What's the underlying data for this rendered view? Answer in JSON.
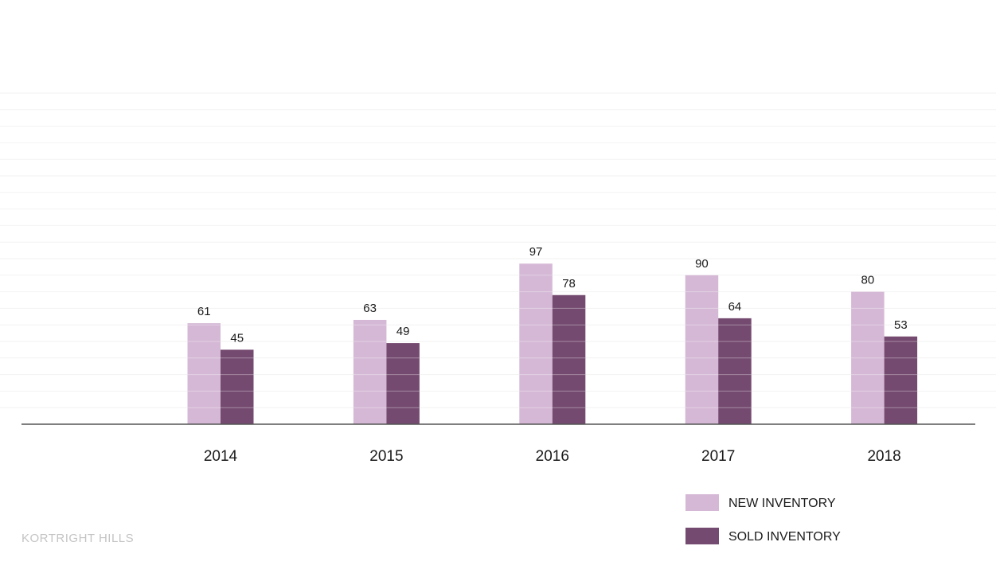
{
  "chart_data": {
    "type": "bar",
    "categories": [
      "2014",
      "2015",
      "2016",
      "2017",
      "2018"
    ],
    "series": [
      {
        "name": "NEW INVENTORY",
        "values": [
          61,
          63,
          97,
          90,
          80
        ],
        "color": "#d5b8d6"
      },
      {
        "name": "SOLD INVENTORY",
        "values": [
          45,
          49,
          78,
          64,
          53
        ],
        "color": "#754a70"
      }
    ],
    "ylim": [
      0,
      200
    ],
    "grid": true,
    "legend": "bottom-right",
    "title": "",
    "xlabel": "",
    "ylabel": ""
  },
  "footer": {
    "text": "KORTRIGHT HILLS"
  },
  "colors": {
    "gridline": "#f2f2f2",
    "axis": "#555555",
    "footer_text": "#c4c4c4"
  }
}
